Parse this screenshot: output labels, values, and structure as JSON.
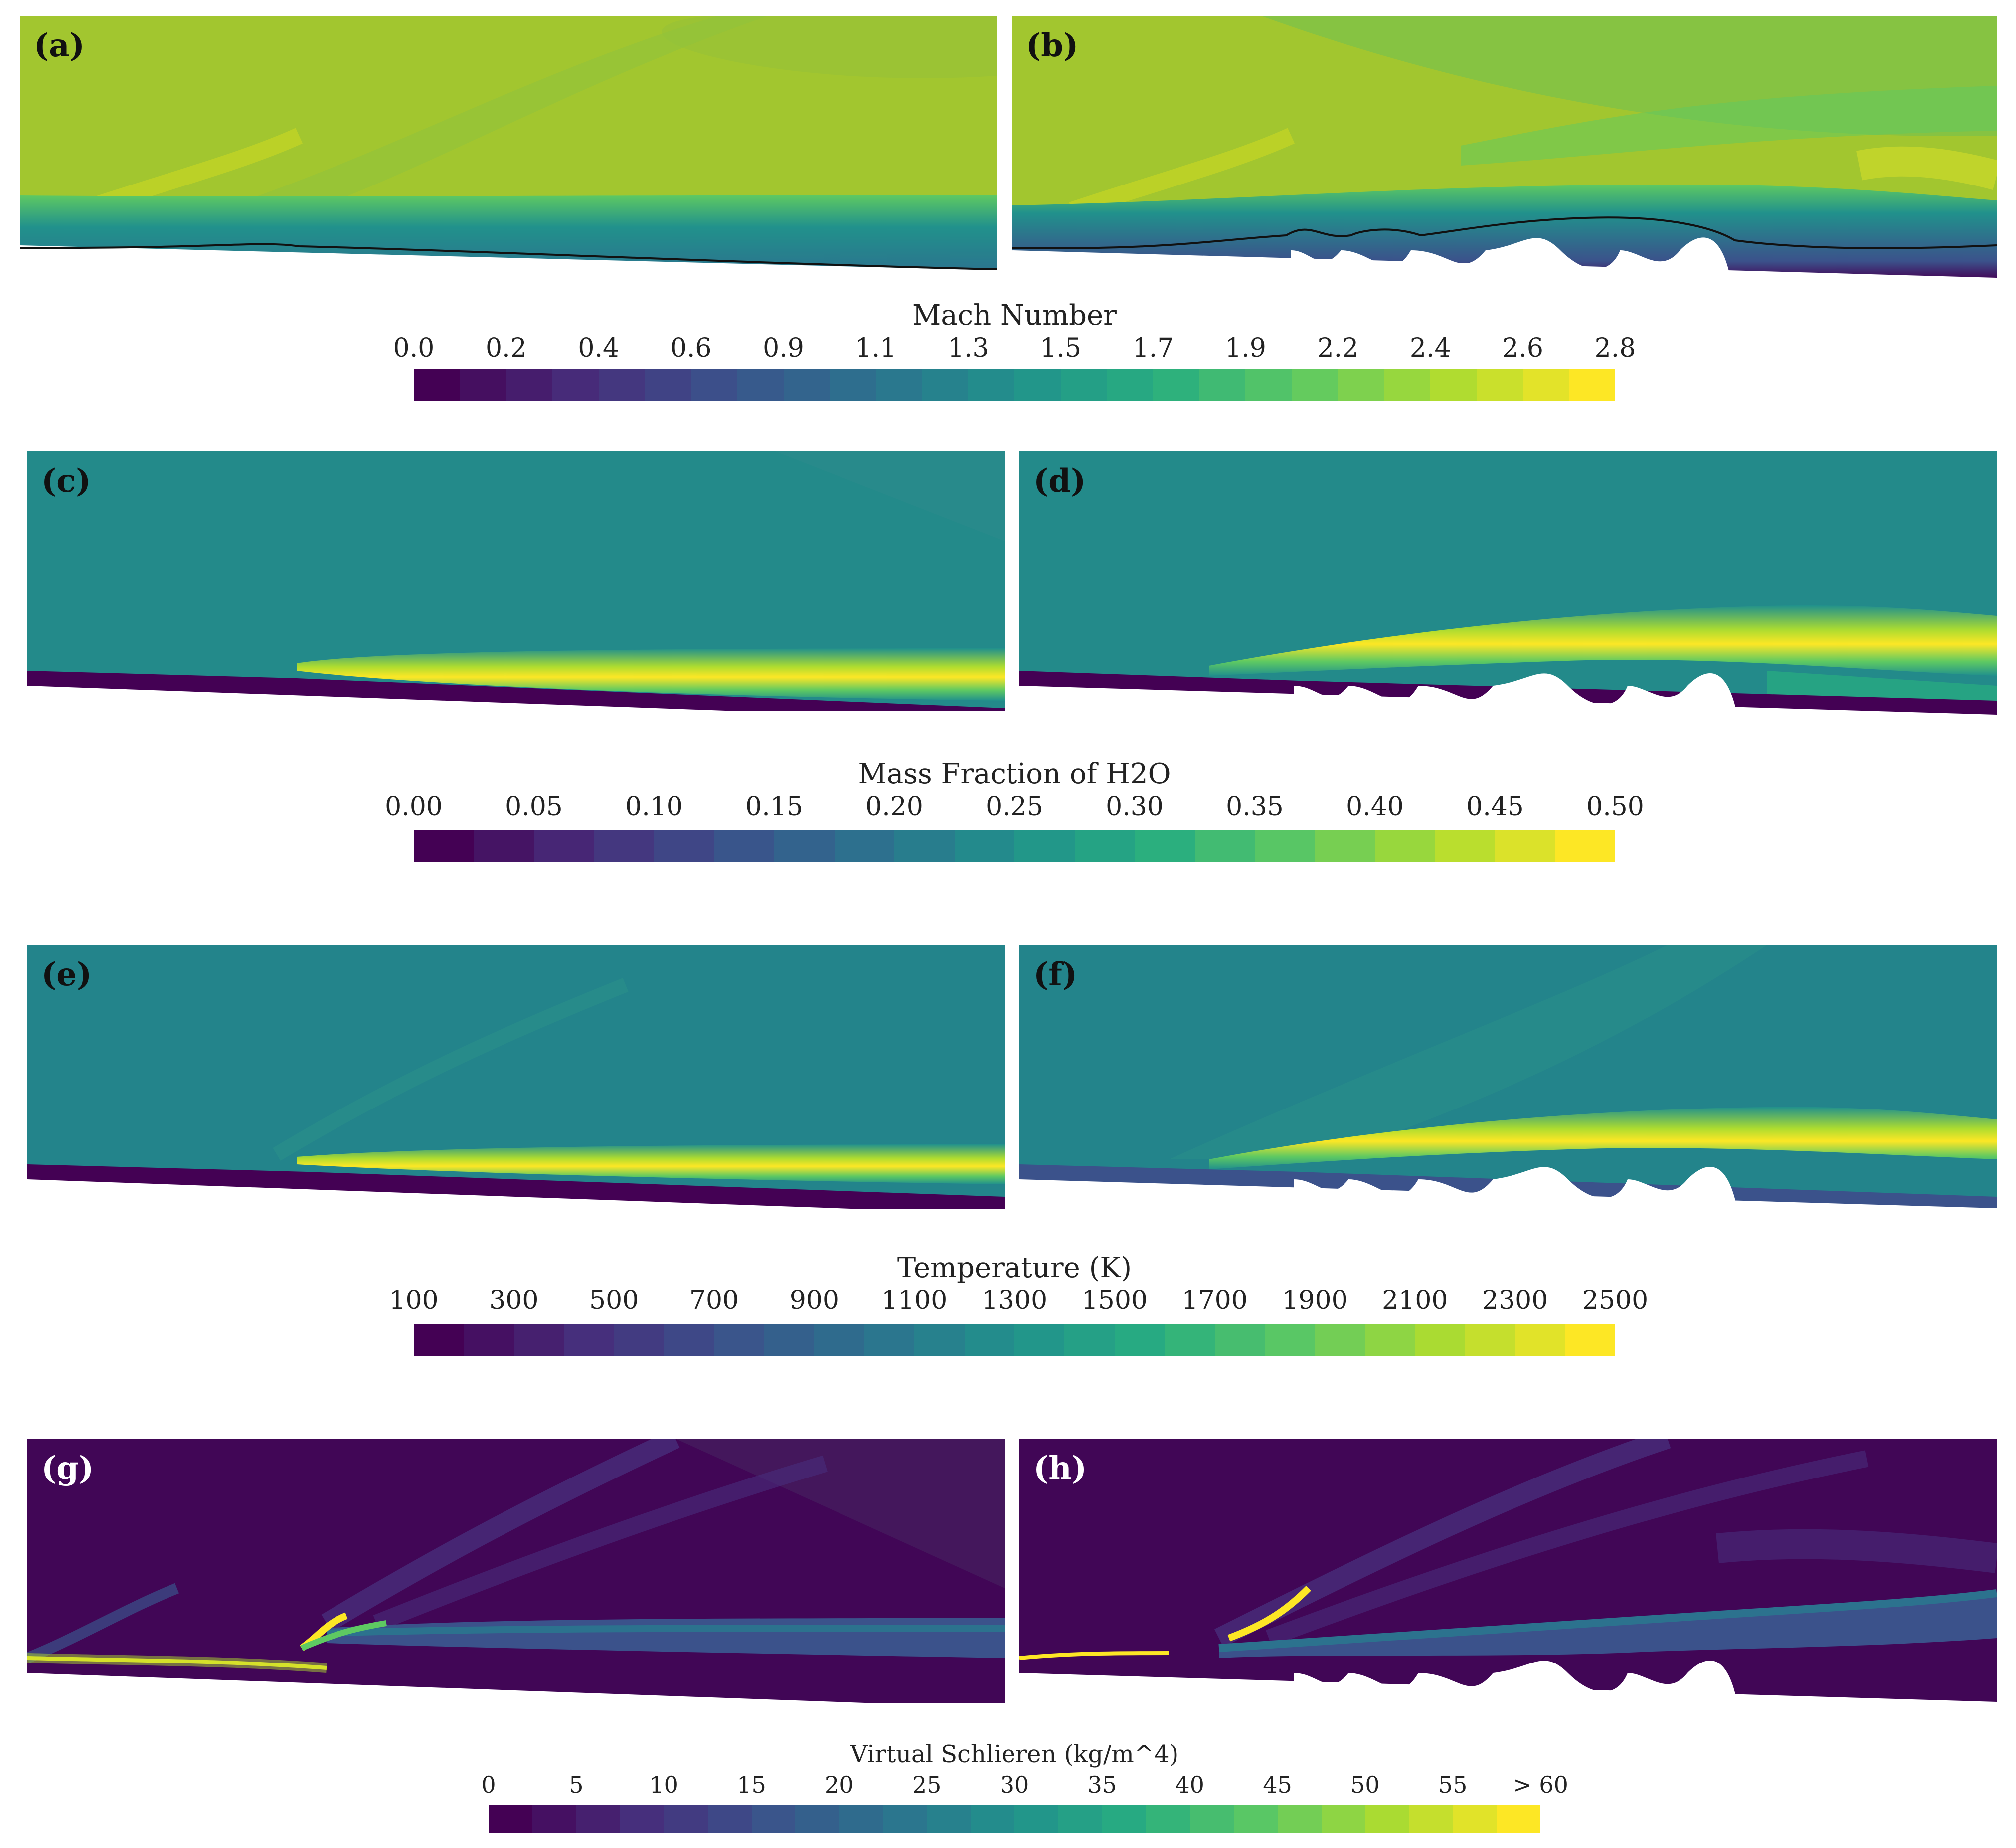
{
  "panels": [
    {
      "id": "a",
      "label": "(a)",
      "field": "mach",
      "case": "smooth"
    },
    {
      "id": "b",
      "label": "(b)",
      "field": "mach",
      "case": "wavy"
    },
    {
      "id": "c",
      "label": "(c)",
      "field": "h2o",
      "case": "smooth"
    },
    {
      "id": "d",
      "label": "(d)",
      "field": "h2o",
      "case": "wavy"
    },
    {
      "id": "e",
      "label": "(e)",
      "field": "temperature",
      "case": "smooth"
    },
    {
      "id": "f",
      "label": "(f)",
      "field": "temperature",
      "case": "wavy"
    },
    {
      "id": "g",
      "label": "(g)",
      "field": "schlieren",
      "case": "smooth"
    },
    {
      "id": "h",
      "label": "(h)",
      "field": "schlieren",
      "case": "wavy"
    }
  ],
  "colorbars": [
    {
      "id": "mach",
      "title": "Mach Number",
      "ticks": [
        "0.0",
        "0.2",
        "0.4",
        "0.6",
        "0.9",
        "1.1",
        "1.3",
        "1.5",
        "1.7",
        "1.9",
        "2.2",
        "2.4",
        "2.6",
        "2.8"
      ]
    },
    {
      "id": "h2o",
      "title": "Mass Fraction of H2O",
      "ticks": [
        "0.00",
        "0.05",
        "0.10",
        "0.15",
        "0.20",
        "0.25",
        "0.30",
        "0.35",
        "0.40",
        "0.45",
        "0.50"
      ]
    },
    {
      "id": "temperature",
      "title": "Temperature (K)",
      "ticks": [
        "100",
        "300",
        "500",
        "700",
        "900",
        "1100",
        "1300",
        "1500",
        "1700",
        "1900",
        "2100",
        "2300",
        "2500"
      ]
    },
    {
      "id": "schlieren",
      "title": "Virtual Schlieren (kg/m^4)",
      "ticks": [
        "0",
        "5",
        "10",
        "15",
        "20",
        "25",
        "30",
        "35",
        "40",
        "45",
        "50",
        "55",
        "> 60"
      ]
    }
  ],
  "colormap": "viridis",
  "colors": {
    "viridis": [
      "#440154",
      "#472d7b",
      "#3b528b",
      "#2c728e",
      "#21918c",
      "#28ae80",
      "#5ec962",
      "#addc30",
      "#fde725"
    ],
    "mach_background": "#a2c62f",
    "h2o_background": "#238a8a",
    "temperature_background": "#23848b",
    "schlieren_background": "#410656",
    "sonic_line": "#111111"
  }
}
